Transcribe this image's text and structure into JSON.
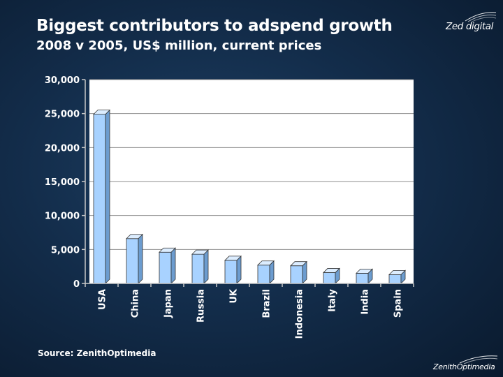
{
  "brand": {
    "top_logo": "Zed digital",
    "bottom_logo": "ZenithOptimedia"
  },
  "source": "Source: ZenithOptimedia",
  "colors": {
    "bar_front": "#a8d2ff",
    "bar_side": "#6c9ccf",
    "bar_top": "#dcedff",
    "plot_bg": "#ffffff",
    "gridline": "#8c8c8c"
  },
  "chart_data": {
    "type": "bar",
    "title": "Biggest contributors to adspend growth",
    "subtitle": "2008 v 2005, US$ million, current prices",
    "xlabel": "",
    "ylabel": "",
    "categories": [
      "USA",
      "China",
      "Japan",
      "Russia",
      "UK",
      "Brazil",
      "Indonesia",
      "Italy",
      "India",
      "Spain"
    ],
    "values": [
      24900,
      6600,
      4600,
      4300,
      3400,
      2700,
      2600,
      1600,
      1500,
      1300
    ],
    "ylim": [
      0,
      30000
    ],
    "yticks": [
      0,
      5000,
      10000,
      15000,
      20000,
      25000,
      30000
    ],
    "ytick_labels": [
      "0",
      "5,000",
      "10,000",
      "15,000",
      "20,000",
      "25,000",
      "30,000"
    ],
    "grid": true,
    "legend": "none"
  }
}
